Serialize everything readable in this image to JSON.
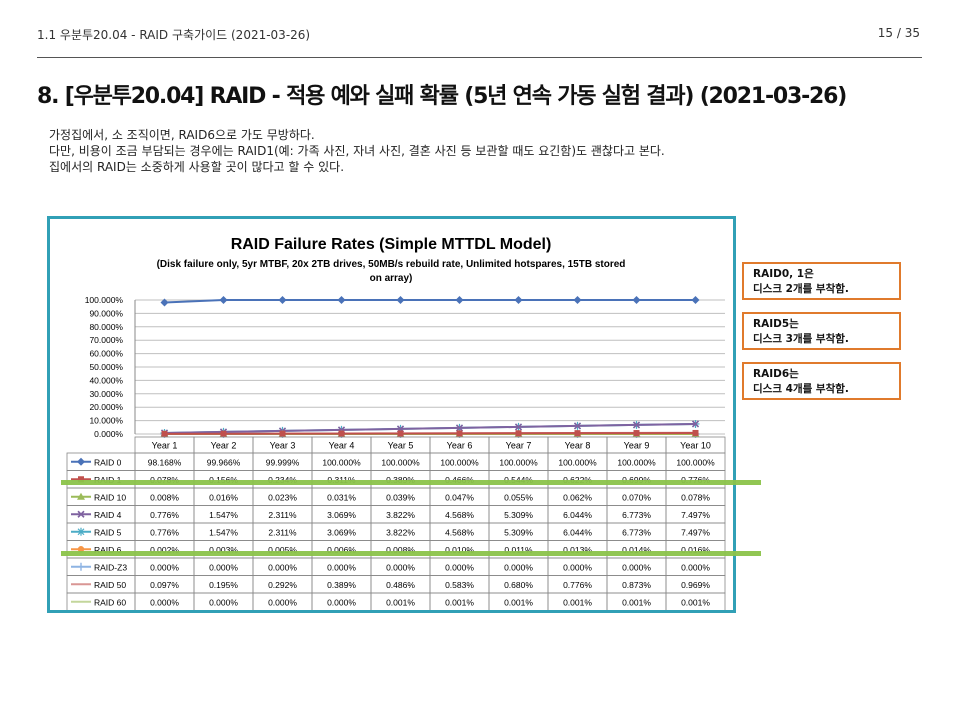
{
  "header": {
    "breadcrumb": "1.1 우분투20.04 - RAID 구축가이드 (2021-03-26)",
    "page_number": "15 / 35"
  },
  "title": "8. [우분투20.04] RAID - 적용 예와 실패 확률 (5년 연속 가동 실험 결과) (2021-03-26)",
  "body": {
    "lines": [
      "가정집에서, 소 조직이면, RAID6으로 가도 무방하다.",
      "다만, 비용이 조금 부담되는 경우에는 RAID1(예: 가족 사진, 자녀 사진, 결혼 사진 등 보관할 때도 요긴함)도 괜찮다고 본다.",
      "집에서의 RAID는 소중하게 사용할 곳이 많다고 할 수 있다."
    ]
  },
  "callouts": [
    {
      "line1": "RAID0, 1은",
      "line2": "디스크 2개를 부착함."
    },
    {
      "line1": "RAID5는",
      "line2": "디스크 3개를 부착함."
    },
    {
      "line1": "RAID6는",
      "line2": "디스크 4개를 부착함."
    }
  ],
  "highlight_color": "#8bc34a",
  "chart_data": {
    "type": "line",
    "title": "RAID Failure Rates (Simple MTTDL Model)",
    "subtitle": "(Disk failure only, 5yr MTBF, 20x 2TB drives, 50MB/s rebuild rate, Unlimited hotspares, 15TB stored on array)",
    "ylim": [
      0,
      100
    ],
    "y_ticks": [
      "100.000%",
      "90.000%",
      "80.000%",
      "70.000%",
      "60.000%",
      "50.000%",
      "40.000%",
      "30.000%",
      "20.000%",
      "10.000%",
      "0.000%"
    ],
    "grid": true,
    "categories": [
      "Year 1",
      "Year 2",
      "Year 3",
      "Year 4",
      "Year 5",
      "Year 6",
      "Year 7",
      "Year 8",
      "Year 9",
      "Year 10"
    ],
    "series": [
      {
        "name": "RAID 0",
        "color": "#4a72b8",
        "marker": "diamond",
        "values": [
          98.168,
          99.966,
          99.999,
          100.0,
          100.0,
          100.0,
          100.0,
          100.0,
          100.0,
          100.0
        ],
        "labels": [
          "98.168%",
          "99.966%",
          "99.999%",
          "100.000%",
          "100.000%",
          "100.000%",
          "100.000%",
          "100.000%",
          "100.000%",
          "100.000%"
        ]
      },
      {
        "name": "RAID 1",
        "color": "#c0504d",
        "marker": "square",
        "values": [
          0.078,
          0.156,
          0.234,
          0.311,
          0.389,
          0.466,
          0.544,
          0.622,
          0.699,
          0.776
        ],
        "labels": [
          "0.078%",
          "0.156%",
          "0.234%",
          "0.311%",
          "0.389%",
          "0.466%",
          "0.544%",
          "0.622%",
          "0.699%",
          "0.776%"
        ]
      },
      {
        "name": "RAID 10",
        "color": "#9bbb59",
        "marker": "triangle",
        "values": [
          0.008,
          0.016,
          0.023,
          0.031,
          0.039,
          0.047,
          0.055,
          0.062,
          0.07,
          0.078
        ],
        "labels": [
          "0.008%",
          "0.016%",
          "0.023%",
          "0.031%",
          "0.039%",
          "0.047%",
          "0.055%",
          "0.062%",
          "0.070%",
          "0.078%"
        ]
      },
      {
        "name": "RAID 4",
        "color": "#7f62a0",
        "marker": "x",
        "values": [
          0.776,
          1.547,
          2.311,
          3.069,
          3.822,
          4.568,
          5.309,
          6.044,
          6.773,
          7.497
        ],
        "labels": [
          "0.776%",
          "1.547%",
          "2.311%",
          "3.069%",
          "3.822%",
          "4.568%",
          "5.309%",
          "6.044%",
          "6.773%",
          "7.497%"
        ]
      },
      {
        "name": "RAID 5",
        "color": "#4bacc6",
        "marker": "star",
        "values": [
          0.776,
          1.547,
          2.311,
          3.069,
          3.822,
          4.568,
          5.309,
          6.044,
          6.773,
          7.497
        ],
        "labels": [
          "0.776%",
          "1.547%",
          "2.311%",
          "3.069%",
          "3.822%",
          "4.568%",
          "5.309%",
          "6.044%",
          "6.773%",
          "7.497%"
        ]
      },
      {
        "name": "RAID 6",
        "color": "#f79646",
        "marker": "circle",
        "values": [
          0.002,
          0.003,
          0.005,
          0.006,
          0.008,
          0.01,
          0.011,
          0.013,
          0.014,
          0.016
        ],
        "labels": [
          "0.002%",
          "0.003%",
          "0.005%",
          "0.006%",
          "0.008%",
          "0.010%",
          "0.011%",
          "0.013%",
          "0.014%",
          "0.016%"
        ]
      },
      {
        "name": "RAID-Z3",
        "color": "#8eb4e3",
        "marker": "plus",
        "values": [
          0.0,
          0.0,
          0.0,
          0.0,
          0.0,
          0.0,
          0.0,
          0.0,
          0.0,
          0.0
        ],
        "labels": [
          "0.000%",
          "0.000%",
          "0.000%",
          "0.000%",
          "0.000%",
          "0.000%",
          "0.000%",
          "0.000%",
          "0.000%",
          "0.000%"
        ]
      },
      {
        "name": "RAID 50",
        "color": "#d99694",
        "marker": "none",
        "values": [
          0.097,
          0.195,
          0.292,
          0.389,
          0.486,
          0.583,
          0.68,
          0.776,
          0.873,
          0.969
        ],
        "labels": [
          "0.097%",
          "0.195%",
          "0.292%",
          "0.389%",
          "0.486%",
          "0.583%",
          "0.680%",
          "0.776%",
          "0.873%",
          "0.969%"
        ]
      },
      {
        "name": "RAID 60",
        "color": "#c3d69b",
        "marker": "none",
        "values": [
          0.0,
          0.0,
          0.0,
          0.0,
          0.001,
          0.001,
          0.001,
          0.001,
          0.001,
          0.001
        ],
        "labels": [
          "0.000%",
          "0.000%",
          "0.000%",
          "0.000%",
          "0.001%",
          "0.001%",
          "0.001%",
          "0.001%",
          "0.001%",
          "0.001%"
        ]
      }
    ]
  }
}
